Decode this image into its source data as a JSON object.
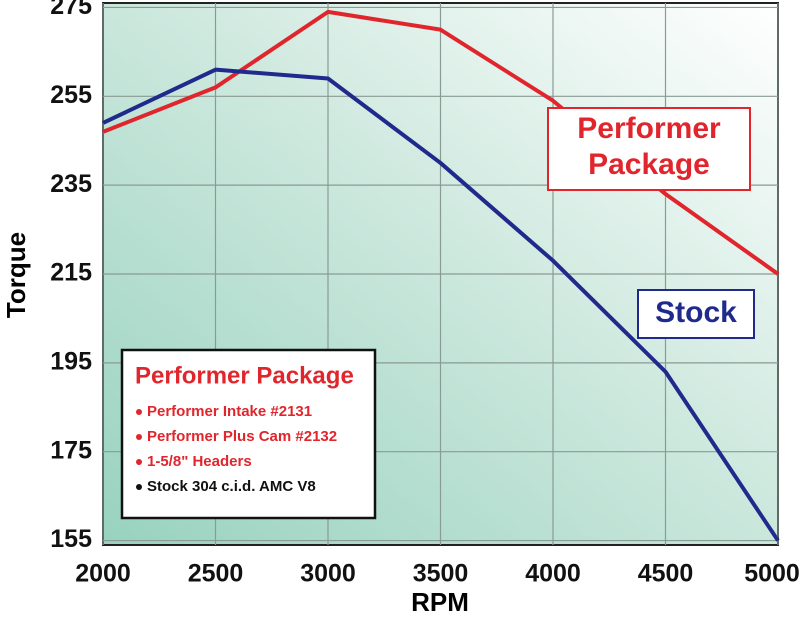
{
  "chart_data": {
    "type": "line",
    "y_label": "Torque",
    "x_label": "RPM",
    "x": [
      2000,
      2500,
      3000,
      3500,
      4000,
      4500,
      5000
    ],
    "xlim": [
      2000,
      5000
    ],
    "xticks": [
      2000,
      2500,
      3000,
      3500,
      4000,
      4500,
      5000
    ],
    "ylim": [
      154,
      276
    ],
    "yticks": [
      155,
      175,
      195,
      215,
      235,
      255,
      275
    ],
    "grid": true,
    "series": [
      {
        "name": "Performer Package",
        "color": "#e0262c",
        "values": [
          247,
          257,
          274,
          270,
          254,
          233,
          215
        ]
      },
      {
        "name": "Stock",
        "color": "#1f2a8c",
        "values": [
          249,
          261,
          259,
          240,
          218,
          193,
          155
        ]
      }
    ],
    "legend": {
      "title": "Performer Package",
      "title_color": "#e0262c",
      "items": [
        {
          "text": "Performer Intake #2131",
          "color": "#e0262c"
        },
        {
          "text": "Performer Plus Cam #2132",
          "color": "#e0262c"
        },
        {
          "text": "1-5/8\" Headers",
          "color": "#e0262c"
        },
        {
          "text": "Stock 304 c.i.d. AMC V8",
          "color": "#111111"
        }
      ]
    }
  }
}
